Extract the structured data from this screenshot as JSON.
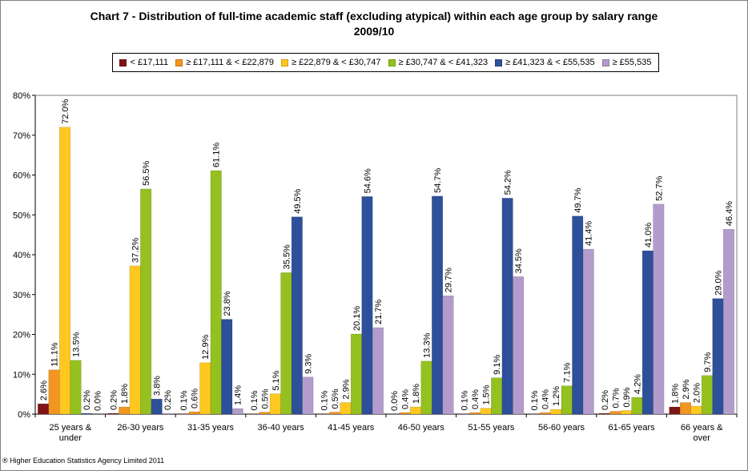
{
  "chart_data": {
    "type": "bar",
    "title": "Chart 7 - Distribution of full-time academic staff (excluding atypical) within each age group by salary range",
    "subtitle": "2009/10",
    "categories": [
      [
        "25 years &",
        "under"
      ],
      [
        "26-30 years"
      ],
      [
        "31-35 years"
      ],
      [
        "36-40 years"
      ],
      [
        "41-45 years"
      ],
      [
        "46-50 years"
      ],
      [
        "51-55 years"
      ],
      [
        "56-60 years"
      ],
      [
        "61-65 years"
      ],
      [
        "66 years &",
        "over"
      ]
    ],
    "ylim": [
      0,
      80
    ],
    "yticks": [
      0,
      10,
      20,
      30,
      40,
      50,
      60,
      70,
      80
    ],
    "ytick_suffix": "%",
    "grid": false,
    "legend_position": "top",
    "series": [
      {
        "name": "< £17,111",
        "color": "#7f1416",
        "values": [
          2.6,
          0.2,
          0.1,
          0.1,
          0.1,
          0.0,
          0.1,
          0.1,
          0.2,
          1.8
        ],
        "labels": [
          "2.6%",
          "0.2%",
          "0.1%",
          "0.1%",
          "0.1%",
          "0.0%",
          "0.1%",
          "0.1%",
          "0.2%",
          "1.8%"
        ]
      },
      {
        "name": "≥ £17,111 & < £22,879",
        "color": "#f3961f",
        "values": [
          11.1,
          1.8,
          0.6,
          0.5,
          0.5,
          0.4,
          0.4,
          0.4,
          0.7,
          2.9
        ],
        "labels": [
          "11.1%",
          "1.8%",
          "0.6%",
          "0.5%",
          "0.5%",
          "0.4%",
          "0.4%",
          "0.4%",
          "0.7%",
          "2.9%"
        ]
      },
      {
        "name": "≥ £22,879 & < £30,747",
        "color": "#ffc820",
        "values": [
          72.0,
          37.2,
          12.9,
          5.1,
          2.9,
          1.8,
          1.5,
          1.2,
          0.9,
          2.0
        ],
        "labels": [
          "72.0%",
          "37.2%",
          "12.9%",
          "5.1%",
          "2.9%",
          "1.8%",
          "1.5%",
          "1.2%",
          "0.9%",
          "2.0%"
        ]
      },
      {
        "name": "≥ £30,747 & < £41,323",
        "color": "#94c11f",
        "values": [
          13.5,
          56.5,
          61.1,
          35.5,
          20.1,
          13.3,
          9.1,
          7.1,
          4.2,
          9.7
        ],
        "labels": [
          "13.5%",
          "56.5%",
          "61.1%",
          "35.5%",
          "20.1%",
          "13.3%",
          "9.1%",
          "7.1%",
          "4.2%",
          "9.7%"
        ]
      },
      {
        "name": "≥ £41,323 & < £55,535",
        "color": "#2e4f9a",
        "values": [
          0.2,
          3.8,
          23.8,
          49.5,
          54.6,
          54.7,
          54.2,
          49.7,
          41.0,
          29.0
        ],
        "labels": [
          "0.2%",
          "3.8%",
          "23.8%",
          "49.5%",
          "54.6%",
          "54.7%",
          "54.2%",
          "49.7%",
          "41.0%",
          "29.0%"
        ]
      },
      {
        "name": "≥ £55,535",
        "color": "#b39ccb",
        "values": [
          0.0,
          0.2,
          1.4,
          9.3,
          21.7,
          29.7,
          34.5,
          41.4,
          52.7,
          46.4
        ],
        "labels": [
          "0.0%",
          "0.2%",
          "1.4%",
          "9.3%",
          "21.7%",
          "29.7%",
          "34.5%",
          "41.4%",
          "52.7%",
          "46.4%"
        ]
      }
    ]
  },
  "footer": {
    "copyright": "® Higher Education Statistics Agency Limited 2011"
  }
}
